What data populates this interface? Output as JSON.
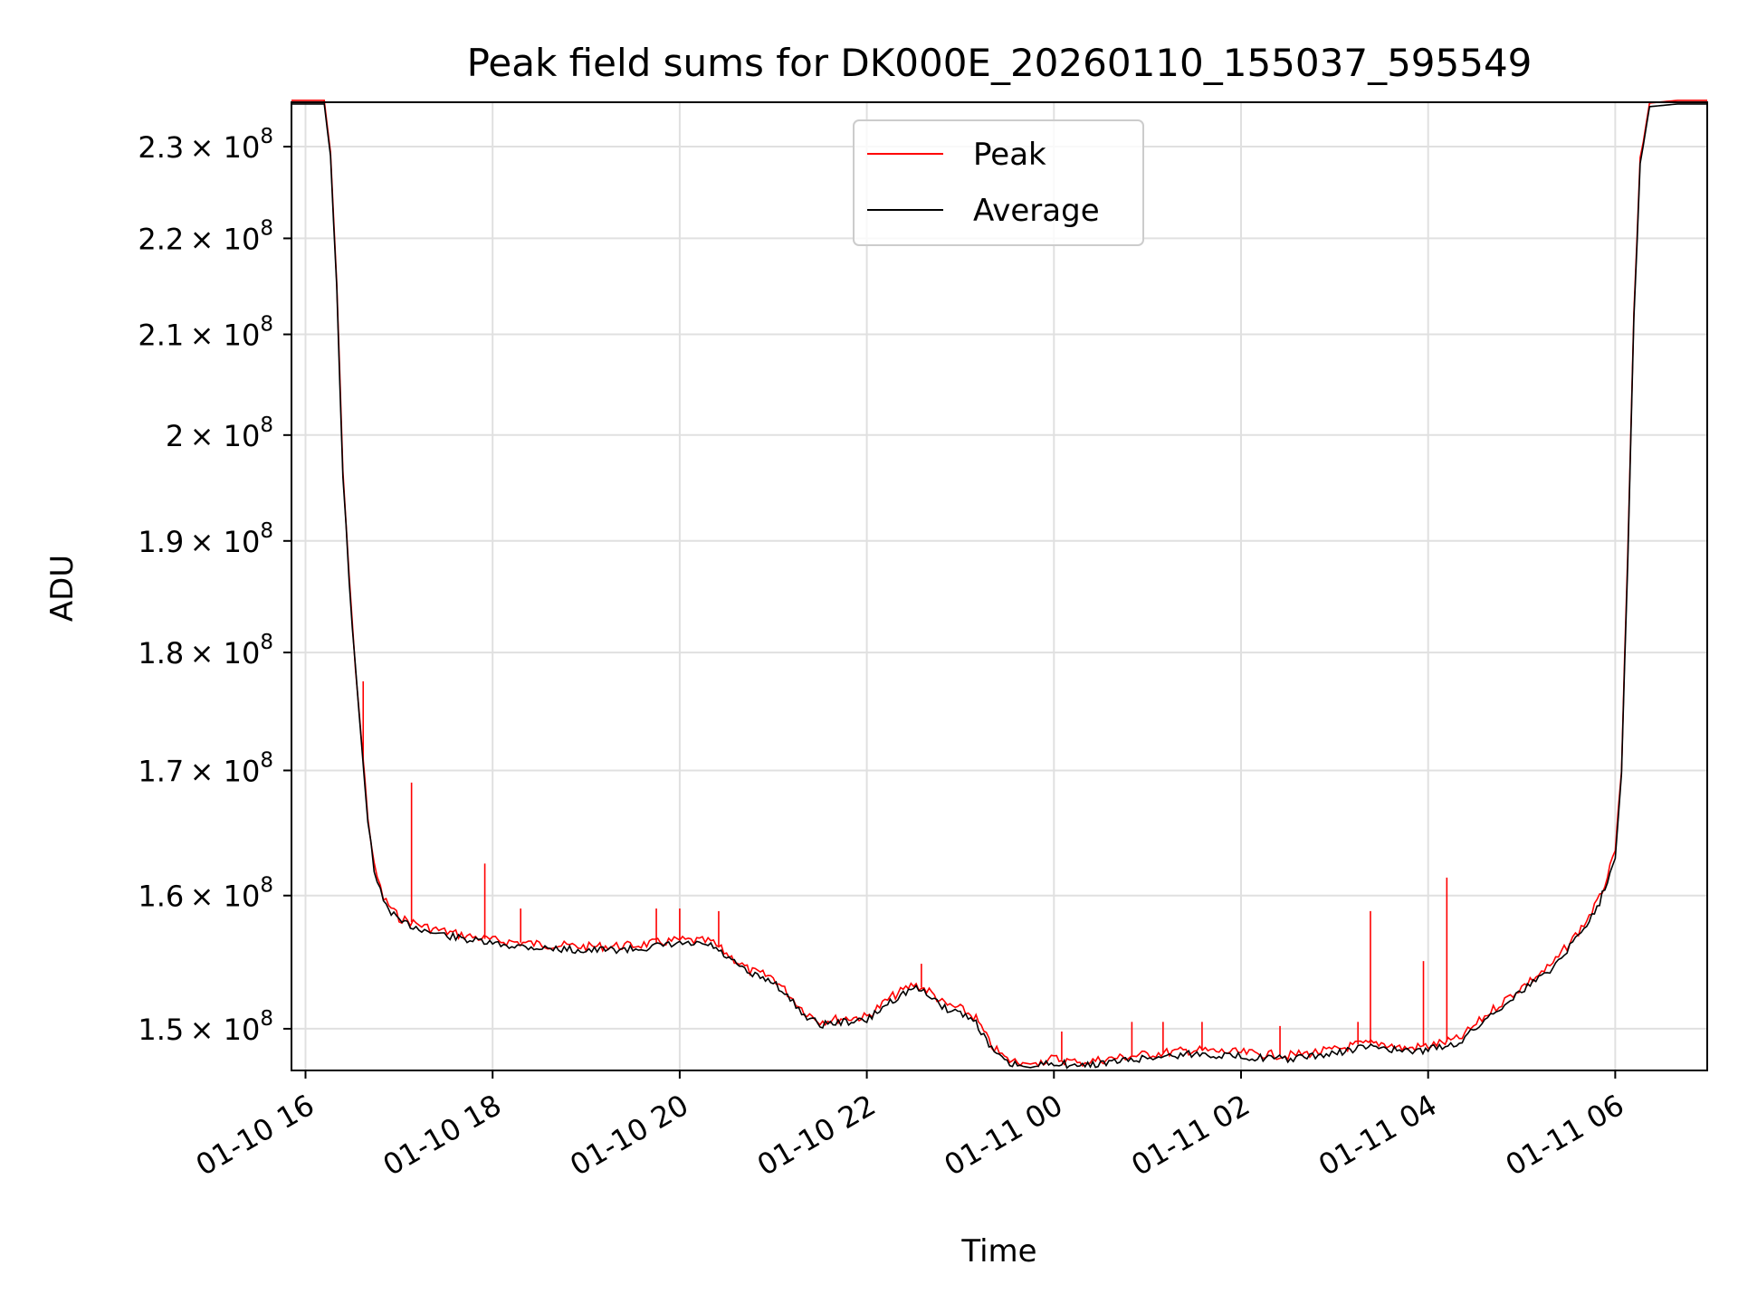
{
  "chart_data": {
    "type": "line",
    "title": "Peak field sums for DK000E_20260110_155037_595549",
    "xlabel": "Time",
    "ylabel": "ADU",
    "xlim": [
      "2026-01-10 15:51",
      "2026-01-11 06:59"
    ],
    "ylim": [
      147000000,
      235000000
    ],
    "yscale": "log",
    "grid": true,
    "legend_position": "upper center",
    "x_ticks": [
      "2026-01-10 16:00",
      "2026-01-10 18:00",
      "2026-01-10 20:00",
      "2026-01-10 22:00",
      "2026-01-11 00:00",
      "2026-01-11 02:00",
      "2026-01-11 04:00",
      "2026-01-11 06:00"
    ],
    "x_tick_labels": [
      "01-10 16",
      "01-10 18",
      "01-10 20",
      "01-10 22",
      "01-11 00",
      "01-11 02",
      "01-11 04",
      "01-11 06"
    ],
    "y_ticks": [
      150000000,
      160000000,
      170000000,
      180000000,
      190000000,
      200000000,
      210000000,
      220000000,
      230000000
    ],
    "y_tick_mantissas": [
      "1.5",
      "1.6",
      "1.7",
      "1.8",
      "1.9",
      "2",
      "2.1",
      "2.2",
      "2.3"
    ],
    "y_tick_multiplier": "× 10",
    "y_tick_exponent": "8",
    "series": [
      {
        "name": "Average",
        "color": "#000000",
        "x": [
          "2026-01-10 15:51",
          "2026-01-10 16:12",
          "2026-01-10 16:16",
          "2026-01-10 16:20",
          "2026-01-10 16:24",
          "2026-01-10 16:30",
          "2026-01-10 16:36",
          "2026-01-10 16:40",
          "2026-01-10 16:44",
          "2026-01-10 16:50",
          "2026-01-10 17:00",
          "2026-01-10 17:20",
          "2026-01-10 17:40",
          "2026-01-10 18:00",
          "2026-01-10 18:30",
          "2026-01-10 19:00",
          "2026-01-10 19:30",
          "2026-01-10 20:00",
          "2026-01-10 20:20",
          "2026-01-10 20:30",
          "2026-01-10 20:45",
          "2026-01-10 21:00",
          "2026-01-10 21:20",
          "2026-01-10 21:30",
          "2026-01-10 21:45",
          "2026-01-10 22:00",
          "2026-01-10 22:15",
          "2026-01-10 22:30",
          "2026-01-10 22:40",
          "2026-01-10 22:50",
          "2026-01-10 23:00",
          "2026-01-10 23:10",
          "2026-01-10 23:20",
          "2026-01-10 23:30",
          "2026-01-10 23:45",
          "2026-01-11 00:00",
          "2026-01-11 00:15",
          "2026-01-11 00:30",
          "2026-01-11 01:00",
          "2026-01-11 01:30",
          "2026-01-11 02:00",
          "2026-01-11 02:30",
          "2026-01-11 03:00",
          "2026-01-11 03:15",
          "2026-01-11 03:30",
          "2026-01-11 03:45",
          "2026-01-11 04:00",
          "2026-01-11 04:20",
          "2026-01-11 04:40",
          "2026-01-11 05:00",
          "2026-01-11 05:20",
          "2026-01-11 05:40",
          "2026-01-11 05:50",
          "2026-01-11 06:00",
          "2026-01-11 06:04",
          "2026-01-11 06:08",
          "2026-01-11 06:12",
          "2026-01-11 06:16",
          "2026-01-11 06:22",
          "2026-01-11 06:40",
          "2026-01-11 06:59"
        ],
        "values": [
          234800000,
          234800000,
          229000000,
          215000000,
          196000000,
          182000000,
          172000000,
          166000000,
          162000000,
          159500000,
          158000000,
          157200000,
          156700000,
          156300000,
          156000000,
          155800000,
          155900000,
          156300000,
          156200000,
          155300000,
          154000000,
          153500000,
          151000000,
          150300000,
          150500000,
          150600000,
          152000000,
          153000000,
          152500000,
          151500000,
          151200000,
          150500000,
          148500000,
          147500000,
          147200000,
          147600000,
          147300000,
          147500000,
          147900000,
          148200000,
          148000000,
          147800000,
          148200000,
          148600000,
          148700000,
          148300000,
          148500000,
          149000000,
          151000000,
          152800000,
          154500000,
          157500000,
          159500000,
          163000000,
          170000000,
          188000000,
          212000000,
          228000000,
          234500000,
          234800000,
          234800000
        ]
      },
      {
        "name": "Peak",
        "color": "#ff0000",
        "spikes": [
          {
            "x": "2026-01-10 16:37",
            "value": 177500000
          },
          {
            "x": "2026-01-10 17:08",
            "value": 169000000
          },
          {
            "x": "2026-01-10 17:55",
            "value": 162500000
          },
          {
            "x": "2026-01-10 18:18",
            "value": 159000000
          },
          {
            "x": "2026-01-10 19:45",
            "value": 159000000
          },
          {
            "x": "2026-01-10 20:00",
            "value": 159000000
          },
          {
            "x": "2026-01-10 20:25",
            "value": 158800000
          },
          {
            "x": "2026-01-10 22:35",
            "value": 154800000
          },
          {
            "x": "2026-01-11 00:05",
            "value": 149800000
          },
          {
            "x": "2026-01-11 00:50",
            "value": 150500000
          },
          {
            "x": "2026-01-11 01:10",
            "value": 150500000
          },
          {
            "x": "2026-01-11 01:35",
            "value": 150500000
          },
          {
            "x": "2026-01-11 02:25",
            "value": 150200000
          },
          {
            "x": "2026-01-11 03:15",
            "value": 150500000
          },
          {
            "x": "2026-01-11 03:23",
            "value": 158800000
          },
          {
            "x": "2026-01-11 03:57",
            "value": 155000000
          },
          {
            "x": "2026-01-11 04:12",
            "value": 161400000
          }
        ]
      }
    ]
  }
}
